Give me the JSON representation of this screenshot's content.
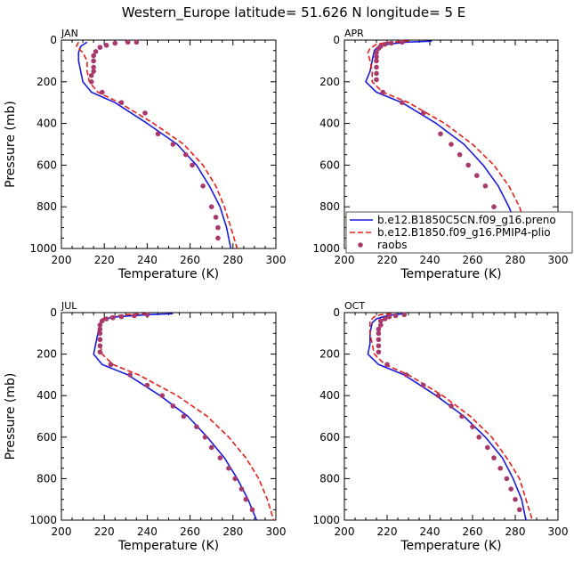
{
  "title": "Western_Europe  latitude= 51.626 N longitude= 5 E",
  "colors": {
    "model1": "#1a1adb",
    "model2": "#e3201b",
    "raobs": "#a8396b"
  },
  "legend": {
    "entries": [
      {
        "label": "b.e12.B1850C5CN.f09_g16.preno",
        "style": "solid",
        "color": "#1a1adb"
      },
      {
        "label": "b.e12.B1850.f09_g16.PMIP4-plio",
        "style": "dashed",
        "color": "#e3201b"
      },
      {
        "label": "raobs",
        "style": "marker",
        "color": "#a8396b"
      }
    ]
  },
  "chart_data": [
    {
      "type": "line",
      "panel": "JAN",
      "xlabel": "Temperature (K)",
      "ylabel": "Pressure (mb)",
      "xlim": [
        200,
        300
      ],
      "ylim": [
        1000,
        0
      ],
      "xticks": [
        200,
        220,
        240,
        260,
        280,
        300
      ],
      "yticks": [
        0,
        200,
        400,
        600,
        800,
        1000
      ],
      "series": [
        {
          "name": "b.e12.B1850C5CN.f09_g16.preno",
          "style": "solid",
          "points": [
            [
              212,
              10
            ],
            [
              209,
              30
            ],
            [
              208,
              60
            ],
            [
              208,
              100
            ],
            [
              209,
              150
            ],
            [
              210,
              200
            ],
            [
              214,
              250
            ],
            [
              225,
              300
            ],
            [
              240,
              400
            ],
            [
              254,
              500
            ],
            [
              263,
              600
            ],
            [
              269,
              700
            ],
            [
              274,
              800
            ],
            [
              277,
              900
            ],
            [
              279,
              1000
            ]
          ]
        },
        {
          "name": "b.e12.B1850.f09_g16.PMIP4-plio",
          "style": "dashed",
          "points": [
            [
              208,
              10
            ],
            [
              207,
              30
            ],
            [
              210,
              60
            ],
            [
              212,
              100
            ],
            [
              212,
              150
            ],
            [
              213,
              200
            ],
            [
              217,
              250
            ],
            [
              227,
              300
            ],
            [
              243,
              400
            ],
            [
              257,
              500
            ],
            [
              266,
              600
            ],
            [
              272,
              700
            ],
            [
              276,
              800
            ],
            [
              279,
              900
            ],
            [
              282,
              1000
            ]
          ]
        },
        {
          "name": "raobs",
          "style": "marker",
          "points": [
            [
              235,
              10
            ],
            [
              231,
              10
            ],
            [
              225,
              15
            ],
            [
              221,
              25
            ],
            [
              218,
              35
            ],
            [
              216,
              55
            ],
            [
              215,
              75
            ],
            [
              215,
              100
            ],
            [
              215,
              130
            ],
            [
              215,
              150
            ],
            [
              214,
              170
            ],
            [
              214,
              200
            ],
            [
              219,
              250
            ],
            [
              228,
              300
            ],
            [
              239,
              350
            ],
            [
              245,
              450
            ],
            [
              252,
              500
            ],
            [
              258,
              550
            ],
            [
              261,
              600
            ],
            [
              266,
              700
            ],
            [
              270,
              800
            ],
            [
              272,
              850
            ],
            [
              273,
              900
            ],
            [
              273,
              950
            ]
          ]
        }
      ]
    },
    {
      "type": "line",
      "panel": "APR",
      "xlabel": "Temperature (K)",
      "ylabel": "",
      "xlim": [
        200,
        300
      ],
      "ylim": [
        1000,
        0
      ],
      "xticks": [
        200,
        220,
        240,
        260,
        280,
        300
      ],
      "yticks": [
        0,
        200,
        400,
        600,
        800,
        1000
      ],
      "series": [
        {
          "name": "b.e12.B1850C5CN.f09_g16.preno",
          "style": "solid",
          "points": [
            [
              241,
              5
            ],
            [
              229,
              10
            ],
            [
              220,
              20
            ],
            [
              216,
              30
            ],
            [
              214,
              50
            ],
            [
              213,
              100
            ],
            [
              212,
              150
            ],
            [
              210,
              200
            ],
            [
              215,
              250
            ],
            [
              227,
              300
            ],
            [
              243,
              400
            ],
            [
              256,
              500
            ],
            [
              265,
              600
            ],
            [
              272,
              700
            ],
            [
              277,
              800
            ],
            [
              281,
              900
            ],
            [
              284,
              1000
            ]
          ]
        },
        {
          "name": "b.e12.B1850.f09_g16.PMIP4-plio",
          "style": "dashed",
          "points": [
            [
              230,
              5
            ],
            [
              221,
              10
            ],
            [
              215,
              20
            ],
            [
              212,
              40
            ],
            [
              211,
              60
            ],
            [
              212,
              100
            ],
            [
              213,
              150
            ],
            [
              213,
              200
            ],
            [
              218,
              250
            ],
            [
              230,
              300
            ],
            [
              247,
              400
            ],
            [
              260,
              500
            ],
            [
              270,
              600
            ],
            [
              277,
              700
            ],
            [
              282,
              800
            ],
            [
              285,
              900
            ],
            [
              287,
              1000
            ]
          ]
        },
        {
          "name": "raobs",
          "style": "marker",
          "points": [
            [
              227,
              10
            ],
            [
              222,
              15
            ],
            [
              219,
              20
            ],
            [
              217,
              30
            ],
            [
              216,
              40
            ],
            [
              215,
              60
            ],
            [
              215,
              80
            ],
            [
              215,
              100
            ],
            [
              215,
              130
            ],
            [
              215,
              160
            ],
            [
              215,
              190
            ],
            [
              218,
              250
            ],
            [
              227,
              300
            ],
            [
              237,
              350
            ],
            [
              245,
              450
            ],
            [
              250,
              500
            ],
            [
              254,
              550
            ],
            [
              258,
              600
            ],
            [
              262,
              650
            ],
            [
              266,
              700
            ],
            [
              270,
              800
            ],
            [
              273,
              850
            ],
            [
              276,
              900
            ],
            [
              278,
              950
            ]
          ]
        }
      ]
    },
    {
      "type": "line",
      "panel": "JUL",
      "xlabel": "Temperature (K)",
      "ylabel": "Pressure (mb)",
      "xlim": [
        200,
        300
      ],
      "ylim": [
        1000,
        0
      ],
      "xticks": [
        200,
        220,
        240,
        260,
        280,
        300
      ],
      "yticks": [
        0,
        200,
        400,
        600,
        800,
        1000
      ],
      "series": [
        {
          "name": "b.e12.B1850C5CN.f09_g16.preno",
          "style": "solid",
          "points": [
            [
              252,
              5
            ],
            [
              240,
              10
            ],
            [
              226,
              20
            ],
            [
              220,
              30
            ],
            [
              218,
              50
            ],
            [
              217,
              100
            ],
            [
              216,
              150
            ],
            [
              215,
              200
            ],
            [
              219,
              250
            ],
            [
              231,
              300
            ],
            [
              246,
              400
            ],
            [
              259,
              500
            ],
            [
              268,
              600
            ],
            [
              276,
              700
            ],
            [
              282,
              800
            ],
            [
              287,
              900
            ],
            [
              291,
              1000
            ]
          ]
        },
        {
          "name": "b.e12.B1850.f09_g16.PMIP4-plio",
          "style": "dashed",
          "points": [
            [
              240,
              5
            ],
            [
              230,
              10
            ],
            [
              222,
              20
            ],
            [
              219,
              30
            ],
            [
              218,
              50
            ],
            [
              218,
              100
            ],
            [
              218,
              150
            ],
            [
              219,
              200
            ],
            [
              224,
              250
            ],
            [
              236,
              300
            ],
            [
              254,
              400
            ],
            [
              268,
              500
            ],
            [
              278,
              600
            ],
            [
              286,
              700
            ],
            [
              292,
              800
            ],
            [
              296,
              900
            ],
            [
              299,
              1000
            ]
          ]
        },
        {
          "name": "raobs",
          "style": "marker",
          "points": [
            [
              240,
              10
            ],
            [
              234,
              15
            ],
            [
              228,
              20
            ],
            [
              224,
              25
            ],
            [
              221,
              30
            ],
            [
              219,
              40
            ],
            [
              218,
              60
            ],
            [
              218,
              80
            ],
            [
              218,
              100
            ],
            [
              218,
              130
            ],
            [
              218,
              160
            ],
            [
              218,
              190
            ],
            [
              223,
              250
            ],
            [
              232,
              300
            ],
            [
              240,
              350
            ],
            [
              247,
              400
            ],
            [
              252,
              450
            ],
            [
              257,
              500
            ],
            [
              263,
              550
            ],
            [
              267,
              600
            ],
            [
              270,
              650
            ],
            [
              274,
              700
            ],
            [
              278,
              750
            ],
            [
              281,
              800
            ],
            [
              284,
              850
            ],
            [
              286,
              900
            ],
            [
              289,
              950
            ]
          ]
        }
      ]
    },
    {
      "type": "line",
      "panel": "OCT",
      "xlabel": "Temperature (K)",
      "ylabel": "",
      "xlim": [
        200,
        300
      ],
      "ylim": [
        1000,
        0
      ],
      "xticks": [
        200,
        220,
        240,
        260,
        280,
        300
      ],
      "yticks": [
        0,
        200,
        400,
        600,
        800,
        1000
      ],
      "series": [
        {
          "name": "b.e12.B1850C5CN.f09_g16.preno",
          "style": "solid",
          "points": [
            [
              228,
              5
            ],
            [
              223,
              10
            ],
            [
              218,
              20
            ],
            [
              215,
              30
            ],
            [
              213,
              50
            ],
            [
              212,
              100
            ],
            [
              212,
              150
            ],
            [
              211,
              200
            ],
            [
              216,
              250
            ],
            [
              228,
              300
            ],
            [
              243,
              400
            ],
            [
              256,
              500
            ],
            [
              266,
              600
            ],
            [
              274,
              700
            ],
            [
              279,
              800
            ],
            [
              283,
              900
            ],
            [
              285,
              1000
            ]
          ]
        },
        {
          "name": "b.e12.B1850.f09_g16.PMIP4-plio",
          "style": "dashed",
          "points": [
            [
              222,
              5
            ],
            [
              217,
              10
            ],
            [
              214,
              20
            ],
            [
              212,
              40
            ],
            [
              212,
              60
            ],
            [
              212,
              100
            ],
            [
              213,
              150
            ],
            [
              214,
              200
            ],
            [
              219,
              250
            ],
            [
              230,
              300
            ],
            [
              246,
              400
            ],
            [
              259,
              500
            ],
            [
              269,
              600
            ],
            [
              276,
              700
            ],
            [
              282,
              800
            ],
            [
              285,
              900
            ],
            [
              288,
              1000
            ]
          ]
        },
        {
          "name": "raobs",
          "style": "marker",
          "points": [
            [
              228,
              10
            ],
            [
              224,
              15
            ],
            [
              221,
              20
            ],
            [
              219,
              30
            ],
            [
              217,
              40
            ],
            [
              217,
              60
            ],
            [
              216,
              80
            ],
            [
              216,
              100
            ],
            [
              216,
              130
            ],
            [
              216,
              160
            ],
            [
              216,
              190
            ],
            [
              220,
              250
            ],
            [
              229,
              300
            ],
            [
              237,
              350
            ],
            [
              244,
              400
            ],
            [
              250,
              450
            ],
            [
              255,
              500
            ],
            [
              260,
              550
            ],
            [
              263,
              600
            ],
            [
              267,
              650
            ],
            [
              270,
              700
            ],
            [
              273,
              750
            ],
            [
              276,
              800
            ],
            [
              278,
              850
            ],
            [
              280,
              900
            ],
            [
              282,
              950
            ]
          ]
        }
      ]
    }
  ]
}
